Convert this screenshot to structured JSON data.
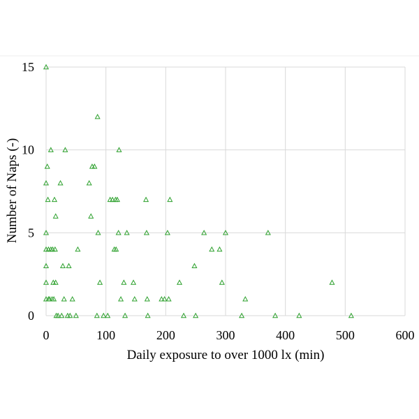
{
  "chart_data": {
    "type": "scatter",
    "xlabel": "Daily exposure to over 1000 lx (min)",
    "ylabel": "Number of Naps (-)",
    "xlim": [
      0,
      600
    ],
    "ylim": [
      0,
      15
    ],
    "x_ticks": [
      0,
      100,
      200,
      300,
      400,
      500,
      600
    ],
    "y_ticks": [
      0,
      5,
      10,
      15
    ],
    "grid": "vertical and horizontal major gridlines",
    "legend": "none",
    "marker": "triangle-outline",
    "marker_color": "#2ca02c",
    "series": [
      {
        "points": [
          [
            0,
            15
          ],
          [
            0,
            8
          ],
          [
            0,
            5
          ],
          [
            0,
            4
          ],
          [
            0,
            3
          ],
          [
            0,
            2
          ],
          [
            0,
            1
          ],
          [
            2,
            9
          ],
          [
            3,
            7
          ],
          [
            4,
            4
          ],
          [
            4,
            1
          ],
          [
            6,
            1
          ],
          [
            8,
            10
          ],
          [
            8,
            4
          ],
          [
            10,
            1
          ],
          [
            11,
            4
          ],
          [
            12,
            2
          ],
          [
            13,
            1
          ],
          [
            14,
            7
          ],
          [
            15,
            4
          ],
          [
            16,
            6
          ],
          [
            16,
            2
          ],
          [
            17,
            0
          ],
          [
            20,
            0
          ],
          [
            24,
            8
          ],
          [
            26,
            0
          ],
          [
            28,
            3
          ],
          [
            30,
            1
          ],
          [
            32,
            10
          ],
          [
            36,
            0
          ],
          [
            38,
            3
          ],
          [
            40,
            0
          ],
          [
            44,
            1
          ],
          [
            50,
            0
          ],
          [
            53,
            4
          ],
          [
            72,
            8
          ],
          [
            75,
            6
          ],
          [
            77,
            9
          ],
          [
            81,
            9
          ],
          [
            85,
            0
          ],
          [
            86,
            12
          ],
          [
            87,
            5
          ],
          [
            90,
            2
          ],
          [
            96,
            0
          ],
          [
            103,
            0
          ],
          [
            107,
            7
          ],
          [
            111,
            7
          ],
          [
            114,
            4
          ],
          [
            116,
            7
          ],
          [
            117,
            4
          ],
          [
            119,
            7
          ],
          [
            121,
            5
          ],
          [
            122,
            10
          ],
          [
            125,
            1
          ],
          [
            130,
            2
          ],
          [
            132,
            0
          ],
          [
            135,
            5
          ],
          [
            146,
            2
          ],
          [
            148,
            1
          ],
          [
            167,
            7
          ],
          [
            168,
            5
          ],
          [
            169,
            1
          ],
          [
            170,
            0
          ],
          [
            193,
            1
          ],
          [
            198,
            1
          ],
          [
            203,
            5
          ],
          [
            205,
            1
          ],
          [
            207,
            7
          ],
          [
            223,
            2
          ],
          [
            230,
            0
          ],
          [
            248,
            3
          ],
          [
            250,
            0
          ],
          [
            264,
            5
          ],
          [
            277,
            4
          ],
          [
            290,
            4
          ],
          [
            294,
            2
          ],
          [
            300,
            5
          ],
          [
            327,
            0
          ],
          [
            333,
            1
          ],
          [
            371,
            5
          ],
          [
            383,
            0
          ],
          [
            423,
            0
          ],
          [
            478,
            2
          ],
          [
            510,
            0
          ]
        ]
      }
    ]
  }
}
